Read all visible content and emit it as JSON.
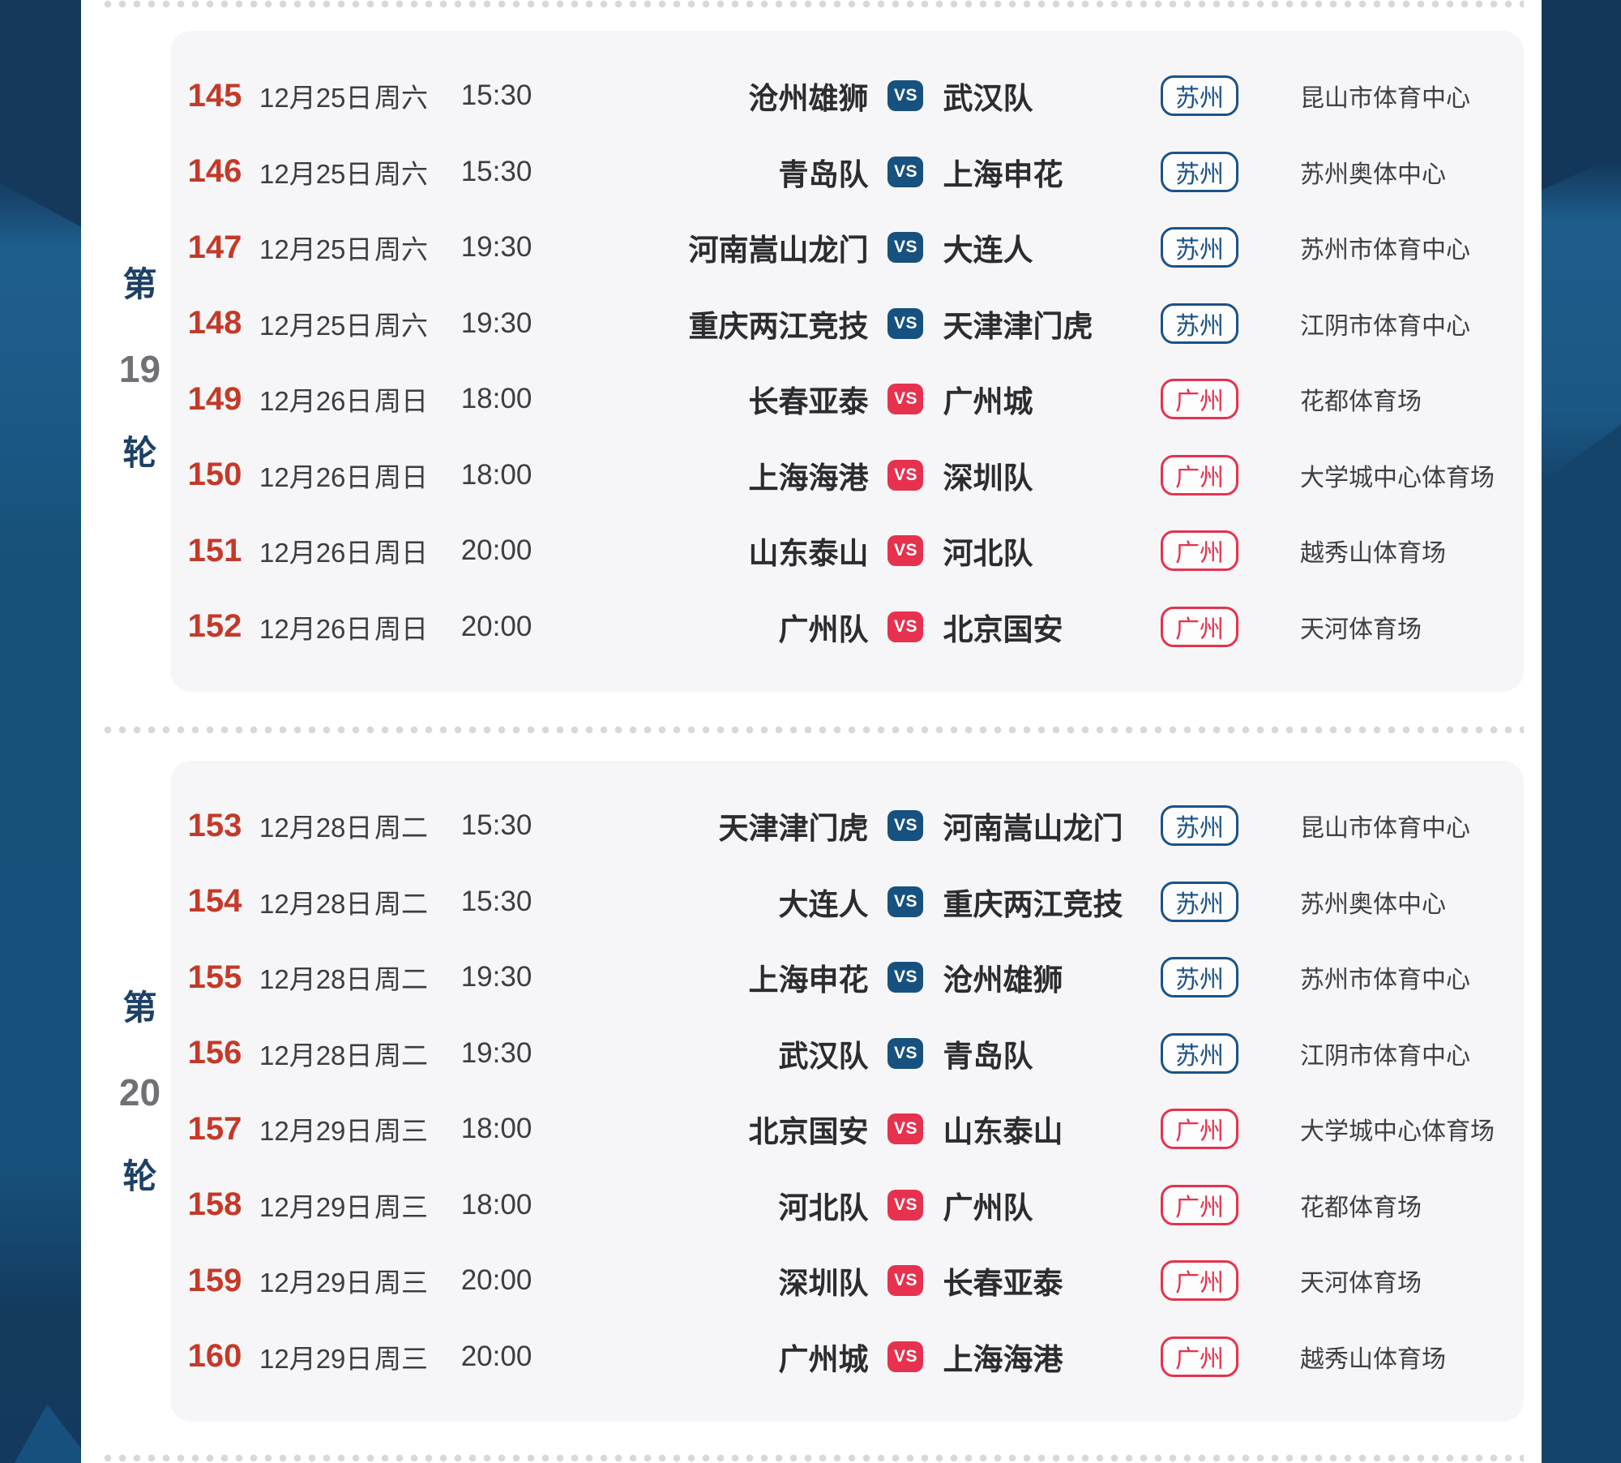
{
  "colors": {
    "background_navy": "#143a5d",
    "background_light_blue": "#1d5c8b",
    "panel_white": "#ffffff",
    "card_gray": "#f6f6f8",
    "match_number_red": "#c43928",
    "suzhou_blue": "#1c5288",
    "guangzhou_red": "#e6324e",
    "round_label_navy": "#1d4066",
    "round_number_gray": "#6f7174",
    "perforation_dot": "#d8d8d8"
  },
  "vs_label": "VS",
  "rounds": [
    {
      "label_prefix": "第",
      "label_number": "19",
      "label_suffix": "轮",
      "matches": [
        {
          "no": "145",
          "date": "12月25日",
          "day": "周六",
          "time": "15:30",
          "home": "沧州雄狮",
          "away": "武汉队",
          "city": "苏州",
          "city_type": "suzhou",
          "venue": "昆山市体育中心"
        },
        {
          "no": "146",
          "date": "12月25日",
          "day": "周六",
          "time": "15:30",
          "home": "青岛队",
          "away": "上海申花",
          "city": "苏州",
          "city_type": "suzhou",
          "venue": "苏州奥体中心"
        },
        {
          "no": "147",
          "date": "12月25日",
          "day": "周六",
          "time": "19:30",
          "home": "河南嵩山龙门",
          "away": "大连人",
          "city": "苏州",
          "city_type": "suzhou",
          "venue": "苏州市体育中心"
        },
        {
          "no": "148",
          "date": "12月25日",
          "day": "周六",
          "time": "19:30",
          "home": "重庆两江竞技",
          "away": "天津津门虎",
          "city": "苏州",
          "city_type": "suzhou",
          "venue": "江阴市体育中心"
        },
        {
          "no": "149",
          "date": "12月26日",
          "day": "周日",
          "time": "18:00",
          "home": "长春亚泰",
          "away": "广州城",
          "city": "广州",
          "city_type": "guangzhou",
          "venue": "花都体育场"
        },
        {
          "no": "150",
          "date": "12月26日",
          "day": "周日",
          "time": "18:00",
          "home": "上海海港",
          "away": "深圳队",
          "city": "广州",
          "city_type": "guangzhou",
          "venue": "大学城中心体育场"
        },
        {
          "no": "151",
          "date": "12月26日",
          "day": "周日",
          "time": "20:00",
          "home": "山东泰山",
          "away": "河北队",
          "city": "广州",
          "city_type": "guangzhou",
          "venue": "越秀山体育场"
        },
        {
          "no": "152",
          "date": "12月26日",
          "day": "周日",
          "time": "20:00",
          "home": "广州队",
          "away": "北京国安",
          "city": "广州",
          "city_type": "guangzhou",
          "venue": "天河体育场"
        }
      ]
    },
    {
      "label_prefix": "第",
      "label_number": "20",
      "label_suffix": "轮",
      "matches": [
        {
          "no": "153",
          "date": "12月28日",
          "day": "周二",
          "time": "15:30",
          "home": "天津津门虎",
          "away": "河南嵩山龙门",
          "city": "苏州",
          "city_type": "suzhou",
          "venue": "昆山市体育中心"
        },
        {
          "no": "154",
          "date": "12月28日",
          "day": "周二",
          "time": "15:30",
          "home": "大连人",
          "away": "重庆两江竞技",
          "city": "苏州",
          "city_type": "suzhou",
          "venue": "苏州奥体中心"
        },
        {
          "no": "155",
          "date": "12月28日",
          "day": "周二",
          "time": "19:30",
          "home": "上海申花",
          "away": "沧州雄狮",
          "city": "苏州",
          "city_type": "suzhou",
          "venue": "苏州市体育中心"
        },
        {
          "no": "156",
          "date": "12月28日",
          "day": "周二",
          "time": "19:30",
          "home": "武汉队",
          "away": "青岛队",
          "city": "苏州",
          "city_type": "suzhou",
          "venue": "江阴市体育中心"
        },
        {
          "no": "157",
          "date": "12月29日",
          "day": "周三",
          "time": "18:00",
          "home": "北京国安",
          "away": "山东泰山",
          "city": "广州",
          "city_type": "guangzhou",
          "venue": "大学城中心体育场"
        },
        {
          "no": "158",
          "date": "12月29日",
          "day": "周三",
          "time": "18:00",
          "home": "河北队",
          "away": "广州队",
          "city": "广州",
          "city_type": "guangzhou",
          "venue": "花都体育场"
        },
        {
          "no": "159",
          "date": "12月29日",
          "day": "周三",
          "time": "20:00",
          "home": "深圳队",
          "away": "长春亚泰",
          "city": "广州",
          "city_type": "guangzhou",
          "venue": "天河体育场"
        },
        {
          "no": "160",
          "date": "12月29日",
          "day": "周三",
          "time": "20:00",
          "home": "广州城",
          "away": "上海海港",
          "city": "广州",
          "city_type": "guangzhou",
          "venue": "越秀山体育场"
        }
      ]
    }
  ]
}
